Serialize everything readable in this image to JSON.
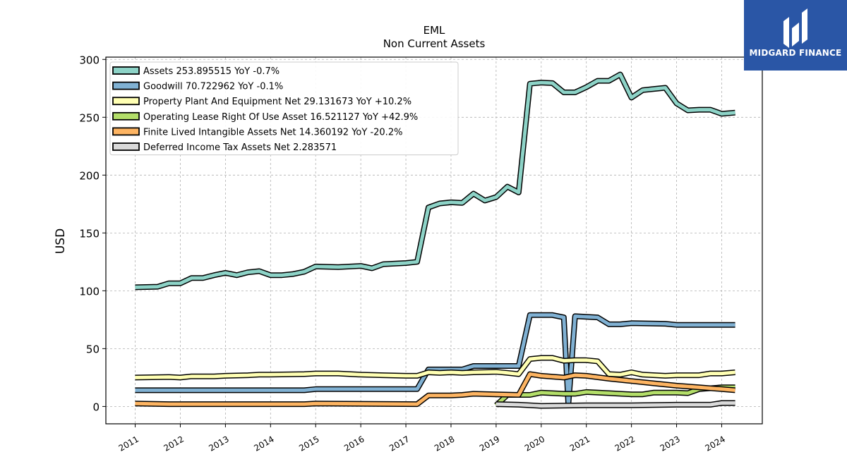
{
  "chart_data": {
    "type": "line",
    "title": "EML",
    "subtitle": "Non Current  Assets",
    "ylabel": "USD",
    "xlabel": "",
    "ylim": [
      -15,
      302
    ],
    "xlim": [
      2010.35,
      2024.9
    ],
    "yticks": [
      0,
      50,
      100,
      150,
      200,
      250,
      300
    ],
    "xticks": [
      "2011",
      "2012",
      "2013",
      "2014",
      "2015",
      "2016",
      "2017",
      "2018",
      "2019",
      "2020",
      "2021",
      "2022",
      "2023",
      "2024"
    ],
    "grid": true,
    "legend_position": "top-left",
    "series": [
      {
        "name": "Assets  253.895515 YoY -0.7%",
        "color": "#8dd3c7",
        "points": [
          [
            2011.0,
            103
          ],
          [
            2011.5,
            103.5
          ],
          [
            2011.75,
            106.5
          ],
          [
            2012.0,
            106.5
          ],
          [
            2012.25,
            111
          ],
          [
            2012.5,
            111
          ],
          [
            2012.75,
            113.5
          ],
          [
            2013.0,
            115.5
          ],
          [
            2013.25,
            113.5
          ],
          [
            2013.5,
            116
          ],
          [
            2013.75,
            117
          ],
          [
            2014.0,
            113.5
          ],
          [
            2014.25,
            113.5
          ],
          [
            2014.5,
            114.5
          ],
          [
            2014.75,
            116.5
          ],
          [
            2015.0,
            121
          ],
          [
            2015.5,
            120.5
          ],
          [
            2016.0,
            121.5
          ],
          [
            2016.25,
            119.5
          ],
          [
            2016.5,
            123
          ],
          [
            2017.0,
            124
          ],
          [
            2017.25,
            125
          ],
          [
            2017.5,
            172
          ],
          [
            2017.75,
            175.5
          ],
          [
            2018.0,
            176.5
          ],
          [
            2018.25,
            176
          ],
          [
            2018.5,
            184
          ],
          [
            2018.75,
            178
          ],
          [
            2019.0,
            181
          ],
          [
            2019.25,
            190
          ],
          [
            2019.5,
            185
          ],
          [
            2019.75,
            279
          ],
          [
            2020.0,
            280
          ],
          [
            2020.25,
            279.5
          ],
          [
            2020.5,
            271.5
          ],
          [
            2020.75,
            271.5
          ],
          [
            2021.0,
            276
          ],
          [
            2021.25,
            281.5
          ],
          [
            2021.5,
            281.5
          ],
          [
            2021.75,
            287
          ],
          [
            2022.0,
            267
          ],
          [
            2022.25,
            273.5
          ],
          [
            2022.5,
            274.5
          ],
          [
            2022.75,
            275.5
          ],
          [
            2023.0,
            262
          ],
          [
            2023.25,
            256
          ],
          [
            2023.5,
            256.5
          ],
          [
            2023.75,
            256.5
          ],
          [
            2024.0,
            253
          ],
          [
            2024.3,
            254
          ]
        ]
      },
      {
        "name": "Goodwill  70.722962 YoY -0.1%",
        "color": "#80b1d3",
        "points": [
          [
            2011.0,
            14
          ],
          [
            2014.75,
            14
          ],
          [
            2015.0,
            15
          ],
          [
            2017.25,
            15
          ],
          [
            2017.5,
            32
          ],
          [
            2018.0,
            32
          ],
          [
            2018.25,
            32
          ],
          [
            2018.5,
            35
          ],
          [
            2019.5,
            35
          ],
          [
            2019.75,
            79
          ],
          [
            2020.25,
            79
          ],
          [
            2020.5,
            77
          ],
          [
            2020.6,
            1
          ],
          [
            2020.75,
            78
          ],
          [
            2021.25,
            77
          ],
          [
            2021.5,
            71
          ],
          [
            2021.75,
            71
          ],
          [
            2022.0,
            72
          ],
          [
            2022.75,
            71.5
          ],
          [
            2023.0,
            70.5
          ],
          [
            2024.3,
            70.5
          ]
        ]
      },
      {
        "name": "Property Plant And Equipment Net  29.131673 YoY +10.2%",
        "color": "#ffffb3",
        "points": [
          [
            2011.0,
            25
          ],
          [
            2011.75,
            25.5
          ],
          [
            2012.0,
            25
          ],
          [
            2012.25,
            26
          ],
          [
            2012.75,
            26
          ],
          [
            2013.0,
            26.5
          ],
          [
            2013.5,
            27
          ],
          [
            2013.75,
            27.5
          ],
          [
            2014.0,
            27.5
          ],
          [
            2014.75,
            28
          ],
          [
            2015.0,
            28.5
          ],
          [
            2015.5,
            28.5
          ],
          [
            2016.0,
            27.5
          ],
          [
            2016.5,
            27
          ],
          [
            2017.0,
            26.5
          ],
          [
            2017.25,
            26.5
          ],
          [
            2017.5,
            29.5
          ],
          [
            2017.75,
            29
          ],
          [
            2018.0,
            29.5
          ],
          [
            2018.25,
            29
          ],
          [
            2018.5,
            29.5
          ],
          [
            2019.0,
            30
          ],
          [
            2019.25,
            29
          ],
          [
            2019.5,
            28
          ],
          [
            2019.75,
            41
          ],
          [
            2020.0,
            42
          ],
          [
            2020.25,
            42
          ],
          [
            2020.5,
            39.5
          ],
          [
            2020.75,
            40
          ],
          [
            2021.0,
            40
          ],
          [
            2021.25,
            39
          ],
          [
            2021.5,
            28
          ],
          [
            2021.75,
            27.5
          ],
          [
            2022.0,
            29.5
          ],
          [
            2022.25,
            27.5
          ],
          [
            2022.75,
            26.5
          ],
          [
            2023.0,
            27
          ],
          [
            2023.25,
            27
          ],
          [
            2023.5,
            27
          ],
          [
            2023.75,
            28.5
          ],
          [
            2024.0,
            28.5
          ],
          [
            2024.3,
            29.5
          ]
        ]
      },
      {
        "name": "Operating Lease Right Of Use Asset  16.521127 YoY +42.9%",
        "color": "#b3de69",
        "points": [
          [
            2019.0,
            1
          ],
          [
            2019.25,
            10
          ],
          [
            2019.5,
            10
          ],
          [
            2019.75,
            10
          ],
          [
            2020.0,
            12
          ],
          [
            2020.5,
            11
          ],
          [
            2020.75,
            11
          ],
          [
            2021.0,
            12.5
          ],
          [
            2021.5,
            11.5
          ],
          [
            2022.0,
            10.5
          ],
          [
            2022.25,
            10.5
          ],
          [
            2022.5,
            12
          ],
          [
            2022.75,
            12
          ],
          [
            2023.0,
            12
          ],
          [
            2023.25,
            11.5
          ],
          [
            2023.5,
            15
          ],
          [
            2024.0,
            16.5
          ],
          [
            2024.3,
            16.5
          ]
        ]
      },
      {
        "name": "Finite Lived Intangible Assets Net  14.360192 YoY -20.2%",
        "color": "#fdb462",
        "points": [
          [
            2011.0,
            2.5
          ],
          [
            2011.75,
            2
          ],
          [
            2014.75,
            2
          ],
          [
            2015.0,
            2.5
          ],
          [
            2017.25,
            2
          ],
          [
            2017.5,
            9.5
          ],
          [
            2017.75,
            9.5
          ],
          [
            2018.0,
            9.5
          ],
          [
            2018.25,
            10
          ],
          [
            2018.5,
            11
          ],
          [
            2019.0,
            10.5
          ],
          [
            2019.5,
            10
          ],
          [
            2019.75,
            28
          ],
          [
            2020.0,
            26.5
          ],
          [
            2020.5,
            25
          ],
          [
            2020.75,
            27
          ],
          [
            2021.0,
            26.5
          ],
          [
            2021.5,
            24
          ],
          [
            2022.0,
            22
          ],
          [
            2022.5,
            20
          ],
          [
            2023.0,
            18
          ],
          [
            2023.5,
            16.5
          ],
          [
            2024.0,
            15
          ],
          [
            2024.3,
            14
          ]
        ]
      },
      {
        "name": "Deferred Income Tax Assets Net  2.283571",
        "color": "#d9d9d9",
        "points": [
          [
            2019.0,
            2
          ],
          [
            2019.5,
            1.5
          ],
          [
            2020.0,
            0.5
          ],
          [
            2021.0,
            1
          ],
          [
            2022.0,
            1
          ],
          [
            2023.0,
            1.5
          ],
          [
            2023.75,
            1.5
          ],
          [
            2024.0,
            3
          ],
          [
            2024.3,
            3
          ]
        ]
      }
    ]
  },
  "logo": {
    "text": "MIDGARD FINANCE"
  }
}
